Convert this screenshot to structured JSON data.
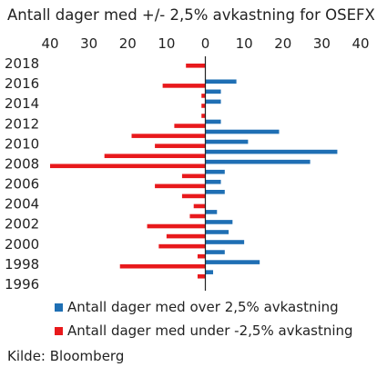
{
  "chart_data": {
    "type": "bar",
    "orientation": "horizontal",
    "title": "Antall dager med +/- 2,5% avkastning for OSEFX",
    "categories": [
      "1996",
      "1997",
      "1998",
      "1999",
      "2000",
      "2001",
      "2002",
      "2003",
      "2004",
      "2005",
      "2006",
      "2007",
      "2008",
      "2009",
      "2010",
      "2011",
      "2012",
      "2013",
      "2014",
      "2015",
      "2016",
      "2017",
      "2018"
    ],
    "y_tick_labels": [
      "1996",
      "1998",
      "2000",
      "2002",
      "2004",
      "2006",
      "2008",
      "2010",
      "2012",
      "2014",
      "2016",
      "2018"
    ],
    "x_tick_labels": [
      "40",
      "30",
      "20",
      "10",
      "0",
      "10",
      "20",
      "30",
      "40"
    ],
    "xlim": [
      -40,
      40
    ],
    "series": [
      {
        "name": "Antall dager med over 2,5% avkastning",
        "color": "#1f6fb4",
        "values": [
          0,
          2,
          14,
          5,
          10,
          6,
          7,
          3,
          0,
          5,
          4,
          5,
          27,
          34,
          11,
          19,
          4,
          0,
          4,
          4,
          8,
          0,
          0
        ]
      },
      {
        "name": "Antall dager med under -2,5% avkastning",
        "color": "#e8191c",
        "values": [
          0,
          2,
          22,
          2,
          12,
          10,
          15,
          4,
          3,
          6,
          13,
          6,
          40,
          26,
          13,
          19,
          8,
          1,
          1,
          1,
          11,
          0,
          5
        ]
      }
    ],
    "grid": false,
    "legend_position": "bottom",
    "source": "Kilde: Bloomberg"
  }
}
